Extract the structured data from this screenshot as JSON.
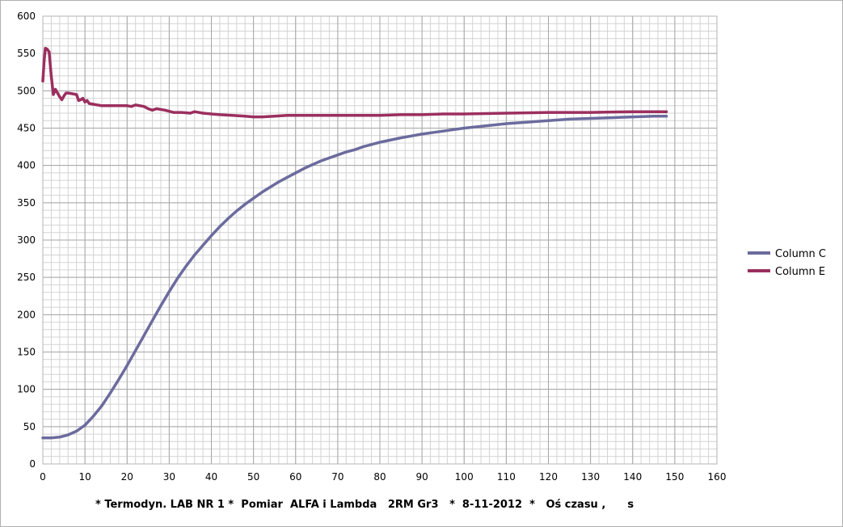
{
  "chart_data": {
    "type": "line",
    "title": "",
    "xlabel": "* Termodyn. LAB NR 1 *  Pomiar  ALFA i Lambda   2RM Gr3   *  8-11-2012  *   Oś czasu ,      s",
    "ylabel": "",
    "xlim": [
      0,
      160
    ],
    "ylim": [
      0,
      600
    ],
    "x_ticks": [
      0,
      10,
      20,
      30,
      40,
      50,
      60,
      70,
      80,
      90,
      100,
      110,
      120,
      130,
      140,
      150,
      160
    ],
    "y_ticks": [
      0,
      50,
      100,
      150,
      200,
      250,
      300,
      350,
      400,
      450,
      500,
      550,
      600
    ],
    "x_minor_step": 2,
    "y_minor_step": 10,
    "grid": true,
    "legend_position": "right",
    "series": [
      {
        "name": "Column C",
        "color": "#6b6b9e",
        "x": [
          0,
          2,
          4,
          6,
          8,
          10,
          12,
          14,
          16,
          18,
          20,
          22,
          24,
          26,
          28,
          30,
          32,
          34,
          36,
          38,
          40,
          42,
          44,
          46,
          48,
          50,
          52,
          54,
          56,
          58,
          60,
          62,
          64,
          66,
          68,
          70,
          72,
          74,
          76,
          78,
          80,
          85,
          90,
          95,
          100,
          105,
          110,
          115,
          120,
          125,
          130,
          135,
          140,
          145,
          148
        ],
        "values": [
          35,
          35,
          36,
          39,
          44,
          52,
          64,
          78,
          95,
          113,
          132,
          152,
          172,
          192,
          212,
          231,
          249,
          265,
          280,
          293,
          306,
          318,
          329,
          339,
          348,
          356,
          364,
          371,
          378,
          384,
          390,
          396,
          401,
          406,
          410,
          414,
          418,
          421,
          425,
          428,
          431,
          437,
          442,
          446,
          450,
          453,
          456,
          458,
          460,
          462,
          463,
          464,
          465,
          466,
          466
        ]
      },
      {
        "name": "Column E",
        "color": "#9b2f5f",
        "x": [
          0,
          0.3,
          0.6,
          1,
          1.5,
          2,
          2.5,
          3,
          3.5,
          4,
          4.5,
          5,
          5.5,
          6,
          7,
          8,
          8.5,
          9,
          9.5,
          10,
          10.5,
          11,
          12,
          14,
          16,
          18,
          20,
          21,
          22,
          24,
          25,
          26,
          27,
          29,
          31,
          33,
          35,
          36,
          38,
          40,
          42,
          45,
          48,
          50,
          52,
          55,
          58,
          60,
          65,
          70,
          75,
          80,
          85,
          90,
          95,
          100,
          110,
          120,
          130,
          140,
          148
        ],
        "values": [
          513,
          540,
          557,
          556,
          552,
          520,
          495,
          502,
          497,
          492,
          488,
          493,
          497,
          497,
          496,
          495,
          487,
          488,
          490,
          485,
          487,
          483,
          482,
          480,
          480,
          480,
          480,
          479,
          481,
          479,
          476,
          474,
          476,
          474,
          471,
          471,
          470,
          472,
          470,
          469,
          468,
          467,
          466,
          465,
          465,
          466,
          467,
          467,
          467,
          467,
          467,
          467,
          468,
          468,
          469,
          469,
          470,
          471,
          471,
          472,
          472
        ]
      }
    ]
  }
}
